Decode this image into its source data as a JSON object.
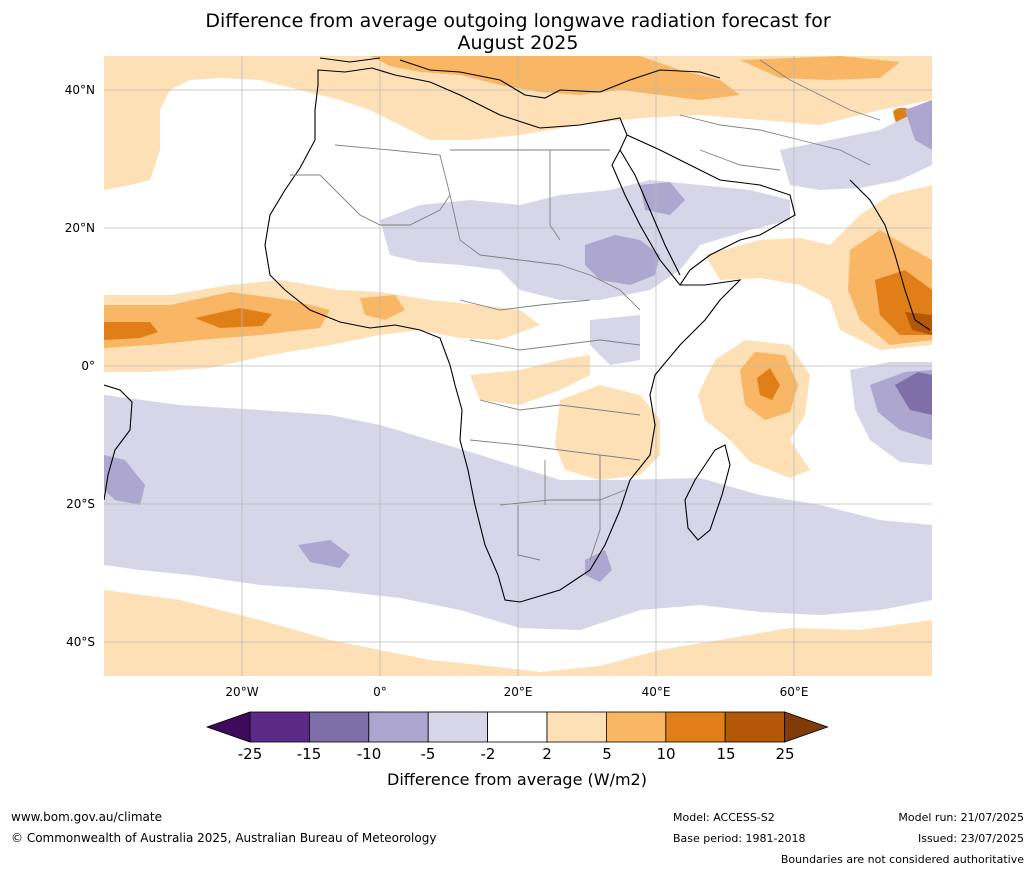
{
  "title_line1": "Difference from average outgoing longwave radiation forecast for",
  "title_line2": "August 2025",
  "lat_labels": [
    "40°N",
    "20°N",
    "0°",
    "20°S",
    "40°S"
  ],
  "lon_labels": [
    "20°W",
    "0°",
    "20°E",
    "40°E",
    "60°E"
  ],
  "colorbar": {
    "title": "Difference from average (W/m2)",
    "ticks": [
      "-25",
      "-15",
      "-10",
      "-5",
      "-2",
      "2",
      "5",
      "10",
      "15",
      "25"
    ],
    "colors": [
      "#3f0a5e",
      "#5b2a86",
      "#7f6fa9",
      "#ada6cf",
      "#d6d6e8",
      "#ffffff",
      "#fde0b6",
      "#f9b664",
      "#e07f17",
      "#b35806",
      "#7f3b08"
    ]
  },
  "footer": {
    "website": "www.bom.gov.au/climate",
    "copyright": "© Commonwealth of Australia 2025, Australian Bureau of Meteorology",
    "model": "Model: ACCESS-S2",
    "base_period": "Base period: 1981-2018",
    "model_run": "Model run: 21/07/2025",
    "issued": "Issued: 23/07/2025",
    "disclaimer": "Boundaries are not considered authoritative"
  }
}
